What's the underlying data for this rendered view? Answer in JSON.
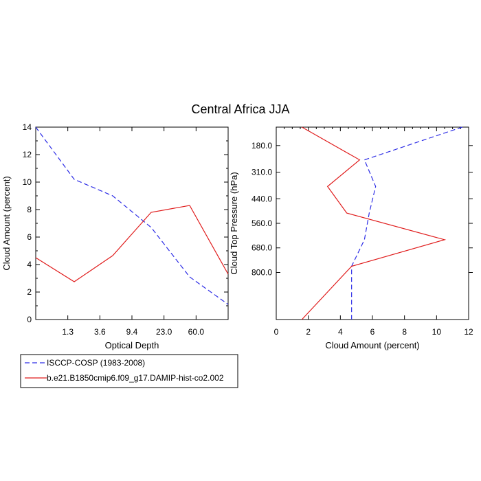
{
  "title": "Central Africa JJA",
  "colors": {
    "obs": "#2d2de6",
    "model": "#e01b1b",
    "axes": "#000000"
  },
  "legend": [
    {
      "name": "ISCCP-COSP (1983-2008)",
      "style": "dashed",
      "color": "#2d2de6"
    },
    {
      "name": "b.e21.B1850cmip6.f09_g17.DAMIP-hist-co2.002",
      "style": "solid",
      "color": "#e01b1b"
    }
  ],
  "chart_data": [
    {
      "type": "line",
      "xlabel": "Optical Depth",
      "ylabel": "Cloud Amount (percent)",
      "categories": [
        "1.3",
        "3.6",
        "9.4",
        "23.0",
        "60.0"
      ],
      "x": [
        0,
        1,
        2,
        3,
        4,
        5,
        6
      ],
      "xlim": [
        0,
        6
      ],
      "ylim": [
        0,
        14
      ],
      "yticks": [
        0,
        2,
        4,
        6,
        8,
        10,
        12,
        14
      ],
      "series": [
        {
          "name": "ISCCP-COSP (1983-2008)",
          "values": [
            14.0,
            10.2,
            9.0,
            6.7,
            3.1,
            1.1
          ],
          "x": [
            0,
            1.2,
            2.4,
            3.6,
            4.8,
            6.0
          ]
        },
        {
          "name": "b.e21.B1850cmip6.f09_g17.DAMIP-hist-co2.002",
          "values": [
            4.5,
            2.75,
            4.65,
            7.8,
            8.3,
            3.3
          ],
          "x": [
            0,
            1.2,
            2.4,
            3.6,
            4.8,
            6.0
          ]
        }
      ]
    },
    {
      "type": "line",
      "xlabel": "Cloud Amount (percent)",
      "ylabel": "Cloud Top Pressure (hPa)",
      "xlim": [
        0,
        12
      ],
      "xticks": [
        0,
        2,
        4,
        6,
        8,
        10,
        12
      ],
      "ylim": [
        90,
        1030
      ],
      "yticks": [
        "180.0",
        "310.0",
        "440.0",
        "560.0",
        "680.0",
        "800.0"
      ],
      "ytick_values": [
        180,
        310,
        440,
        560,
        680,
        800
      ],
      "series": [
        {
          "name": "ISCCP-COSP (1983-2008)",
          "values": [
            11.6,
            5.5,
            6.2,
            5.8,
            5.5,
            4.7,
            4.7
          ],
          "levels": [
            90,
            250,
            380,
            510,
            640,
            770,
            1030
          ]
        },
        {
          "name": "b.e21.B1850cmip6.f09_g17.DAMIP-hist-co2.002",
          "values": [
            1.6,
            5.2,
            3.2,
            4.4,
            10.5,
            4.7,
            1.6
          ],
          "levels": [
            90,
            250,
            380,
            510,
            640,
            770,
            1030
          ]
        }
      ]
    }
  ]
}
